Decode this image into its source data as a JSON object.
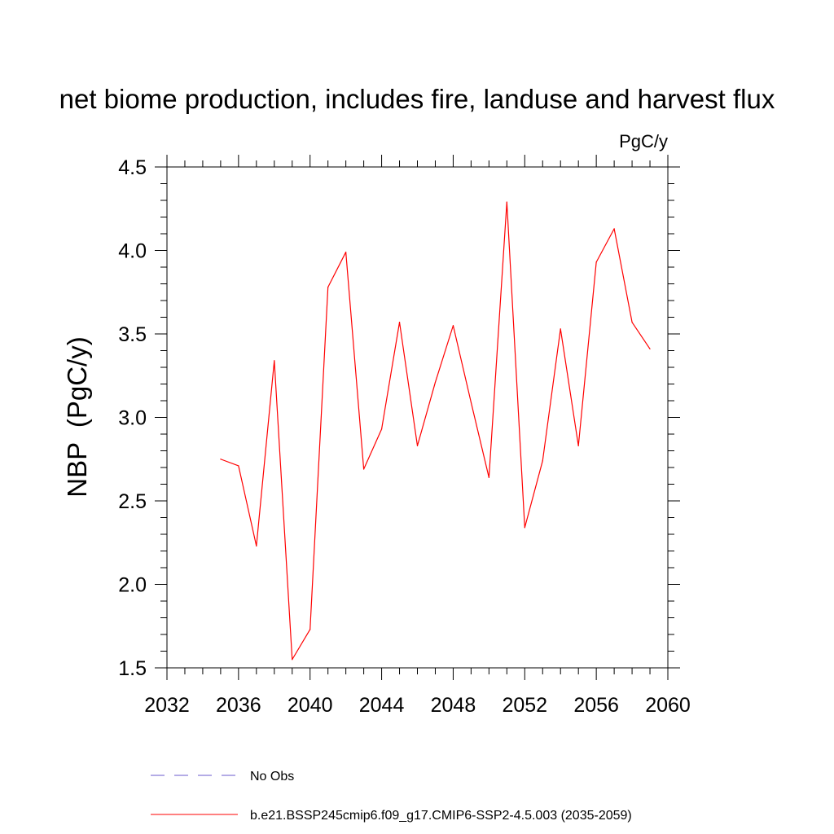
{
  "chart_data": {
    "type": "line",
    "title": "net biome production, includes fire, landuse and harvest flux",
    "units": "PgC/y",
    "ylabel": "NBP  (PgC/y)",
    "xlabel": "",
    "xlim": [
      2032,
      2060
    ],
    "ylim": [
      1.5,
      4.5
    ],
    "x_ticks": [
      2032,
      2036,
      2040,
      2044,
      2048,
      2052,
      2056,
      2060
    ],
    "x_tick_labels": [
      "2032",
      "2036",
      "2040",
      "2044",
      "2048",
      "2052",
      "2056",
      "2060"
    ],
    "y_ticks": [
      1.5,
      2.0,
      2.5,
      3.0,
      3.5,
      4.0,
      4.5
    ],
    "y_tick_labels": [
      "1.5",
      "2.0",
      "2.5",
      "3.0",
      "3.5",
      "4.0",
      "4.5"
    ],
    "grid": false,
    "legend_position": "bottom",
    "series": [
      {
        "name": "b.e21.BSSP245cmip6.f09_g17.CMIP6-SSP2-4.5.003 (2035-2059)",
        "color": "#ff0000",
        "style": "solid",
        "x": [
          2035,
          2036,
          2037,
          2038,
          2039,
          2040,
          2041,
          2042,
          2043,
          2044,
          2045,
          2046,
          2047,
          2048,
          2049,
          2050,
          2051,
          2052,
          2053,
          2054,
          2055,
          2056,
          2057,
          2058,
          2059
        ],
        "values": [
          2.75,
          2.71,
          2.23,
          3.34,
          1.55,
          1.73,
          3.78,
          3.99,
          2.69,
          2.93,
          3.57,
          2.83,
          3.21,
          3.55,
          3.09,
          2.64,
          4.29,
          2.34,
          2.74,
          3.53,
          2.83,
          3.93,
          4.13,
          3.57,
          3.41
        ]
      }
    ],
    "legend": [
      {
        "label": "No Obs",
        "color": "#6a5acd",
        "style": "dashed"
      },
      {
        "label": "b.e21.BSSP245cmip6.f09_g17.CMIP6-SSP2-4.5.003 (2035-2059)",
        "color": "#ff0000",
        "style": "solid"
      }
    ]
  }
}
